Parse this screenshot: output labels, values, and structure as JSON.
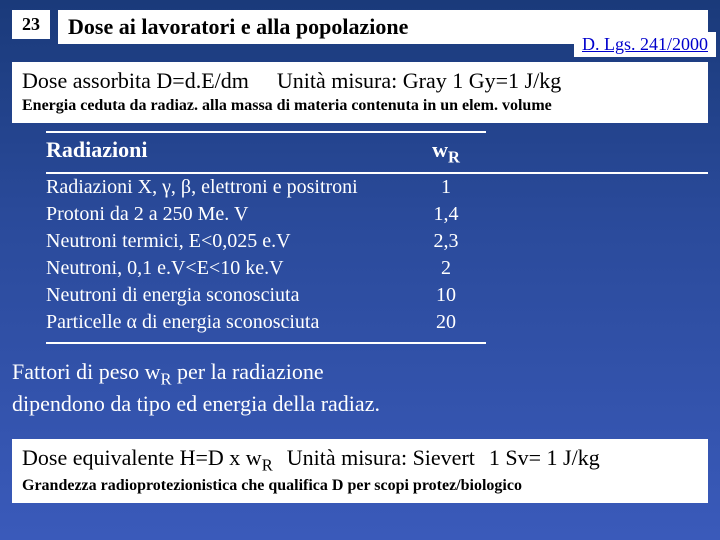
{
  "page_number": "23",
  "title": "Dose ai lavoratori e alla popolazione",
  "reference": "D. Lgs. 241/2000",
  "section1": {
    "left": "Dose assorbita D=d.E/dm",
    "right": "Unità misura: Gray 1 Gy=1 J/kg",
    "desc": "Energia ceduta da radiaz. alla massa di materia contenuta in un elem. volume"
  },
  "table": {
    "header_left": "Radiazioni",
    "header_right_prefix": "w",
    "header_right_sub": "R",
    "rows": [
      {
        "label": "Radiazioni X, γ, β, elettroni e positroni",
        "value": "1"
      },
      {
        "label": "Protoni da 2 a 250 Me. V",
        "value": "1,4"
      },
      {
        "label": "Neutroni termici, E<0,025 e.V",
        "value": "2,3"
      },
      {
        "label": "Neutroni, 0,1 e.V<E<10 ke.V",
        "value": "2"
      },
      {
        "label": "Neutroni di energia sconosciuta",
        "value": "10"
      },
      {
        "label": "Particelle α di energia sconosciuta",
        "value": "20"
      }
    ]
  },
  "caption": {
    "line1_prefix": "Fattori di peso w",
    "line1_sub": "R",
    "line1_suffix": " per la radiazione",
    "line2": "dipendono da tipo ed energia della radiaz."
  },
  "section2": {
    "eq_prefix": "Dose equivalente H=D x w",
    "eq_sub": "R",
    "unit": "Unità misura: Sievert",
    "conv": "1 Sv= 1 J/kg",
    "note": "Grandezza radioprotezionistica che qualifica D per scopi protez/biologico"
  },
  "colors": {
    "bg_top": "#1a3a7a",
    "bg_bottom": "#3a5aba",
    "box_bg": "#ffffff",
    "link": "#0000cc",
    "text_white": "#ffffff",
    "text_black": "#000000"
  }
}
